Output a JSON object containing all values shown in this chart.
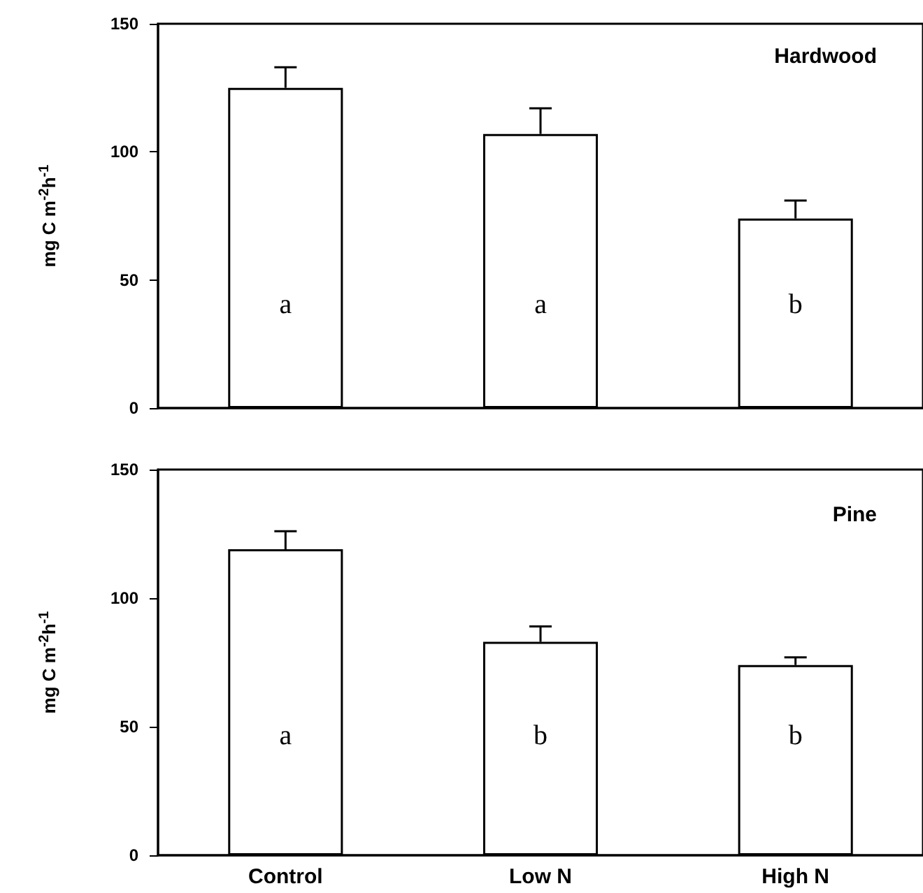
{
  "chart_data": [
    {
      "type": "bar",
      "title": "Hardwood",
      "ylabel": "mg C m$^{-2}$h$^{-1}$",
      "categories": [
        null,
        null,
        null
      ],
      "series": [
        {
          "color": "#ffffff",
          "values": [
            125,
            107,
            74
          ],
          "errors": [
            [
              125,
              133
            ],
            [
              107,
              117
            ],
            [
              74,
              81
            ]
          ]
        }
      ],
      "ylim": [
        0,
        150
      ],
      "yticks": [
        0,
        50,
        100,
        150
      ],
      "grid": false,
      "tick_labels": "y",
      "annotations": [
        "a",
        "a",
        "b"
      ]
    },
    {
      "type": "bar",
      "title": "Pine",
      "ylabel": "mg C m$^{-2}$h$^{-1}$",
      "categories": [
        "Control",
        "Low N",
        "High N"
      ],
      "series": [
        {
          "color": "#ffffff",
          "values": [
            119,
            83,
            74
          ],
          "errors": [
            [
              119,
              126
            ],
            [
              83,
              89
            ],
            [
              74,
              77
            ]
          ]
        }
      ],
      "ylim": [
        0,
        150
      ],
      "yticks": [
        0,
        50,
        100,
        150
      ],
      "grid": false,
      "annotations": [
        "a",
        "b",
        "b"
      ]
    }
  ]
}
